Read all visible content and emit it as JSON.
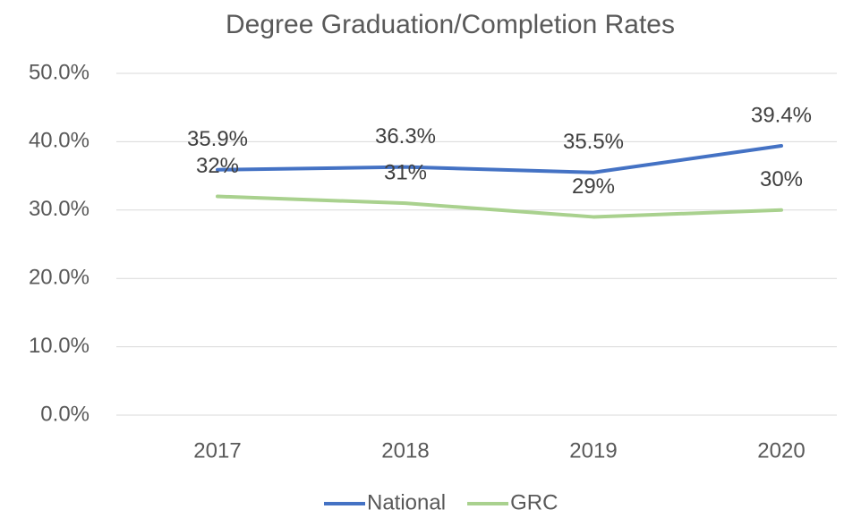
{
  "chart_data": {
    "type": "line",
    "title": "Degree Graduation/Completion Rates",
    "categories": [
      "2017",
      "2018",
      "2019",
      "2020"
    ],
    "series": [
      {
        "name": "National",
        "color": "#4472c4",
        "values": [
          35.9,
          36.3,
          35.5,
          39.4
        ],
        "value_labels": [
          "35.9%",
          "36.3%",
          "35.5%",
          "39.4%"
        ]
      },
      {
        "name": "GRC",
        "color": "#a9d18e",
        "values": [
          32,
          31,
          29,
          30
        ],
        "value_labels": [
          "32%",
          "31%",
          "29%",
          "30%"
        ]
      }
    ],
    "ylim": [
      0,
      50
    ],
    "yticks": [
      {
        "value": 0,
        "label": "0.0%"
      },
      {
        "value": 10,
        "label": "10.0%"
      },
      {
        "value": 20,
        "label": "20.0%"
      },
      {
        "value": 30,
        "label": "30.0%"
      },
      {
        "value": 40,
        "label": "40.0%"
      },
      {
        "value": 50,
        "label": "50.0%"
      }
    ],
    "grid": true,
    "legend": "bottom"
  }
}
